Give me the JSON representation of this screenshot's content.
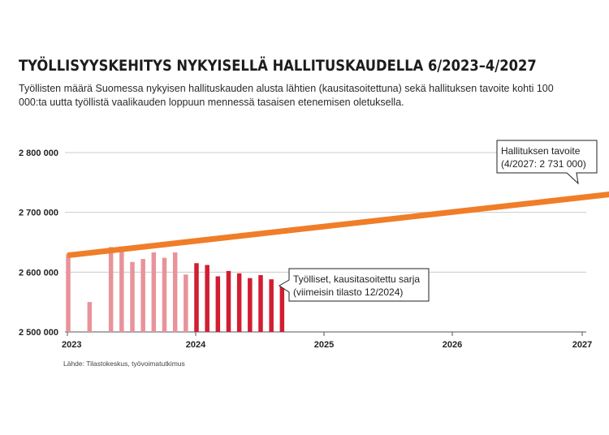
{
  "title": "TYÖLLISYYSKEHITYS NYKYISELLÄ HALLITUSKAUDELLA 6/2023–4/2027",
  "subtitle": "Työllisten määrä Suomessa nykyisen hallituskauden alusta lähtien (kausitasoitettuna) sekä hallituksen tavoite kohti 100 000:ta uutta työllistä vaalikauden loppuun mennessä tasaisen etenemisen oletuksella.",
  "source": "Lähde: Tilastokeskus, työvoimatutkimus",
  "colors": {
    "bars_2023": "#e8939a",
    "bars_2024": "#d11e30",
    "target_line": "#f07d28",
    "grid": "#cccccc"
  },
  "chart_data": {
    "type": "bar",
    "ylim": [
      2500000,
      2800000
    ],
    "yticks": [
      2500000,
      2600000,
      2700000,
      2800000
    ],
    "ytick_labels": [
      "2 500 000",
      "2 600 000",
      "2 700 000",
      "2 800 000"
    ],
    "xticks": [
      "2023",
      "2024",
      "2025",
      "2026",
      "2027"
    ],
    "series": [
      {
        "name": "Työlliset, kausitasoitettu sarja",
        "months": [
          "2023-01",
          "2023-02",
          "2023-03",
          "2023-04",
          "2023-05",
          "2023-06",
          "2023-07",
          "2023-08",
          "2023-09",
          "2023-10",
          "2023-11",
          "2023-12",
          "2024-01",
          "2024-02",
          "2024-03",
          "2024-04",
          "2024-05",
          "2024-06",
          "2024-07",
          "2024-08",
          "2024-09",
          "2024-10",
          "2024-11",
          "2024-12"
        ],
        "values": [
          2630000,
          null,
          2550000,
          null,
          2642000,
          2643000,
          2617000,
          2622000,
          2633000,
          2624000,
          2633000,
          2596000,
          2615000,
          2612000,
          2593000,
          2602000,
          2598000,
          2590000,
          2595000,
          2588000,
          2578000,
          null,
          null,
          null
        ],
        "year_colors": {
          "2023": "#e8939a",
          "2024": "#d11e30"
        }
      },
      {
        "name": "Hallituksen tavoite",
        "x": [
          "2023-01",
          "2027-04"
        ],
        "values": [
          2628000,
          2731000
        ]
      }
    ],
    "annotations": [
      {
        "label": "Hallituksen tavoite",
        "detail": "(4/2027: 2 731 000)"
      },
      {
        "label": "Työlliset, kausitasoitettu sarja",
        "detail": "(viimeisin tilasto 12/2024)"
      }
    ]
  }
}
